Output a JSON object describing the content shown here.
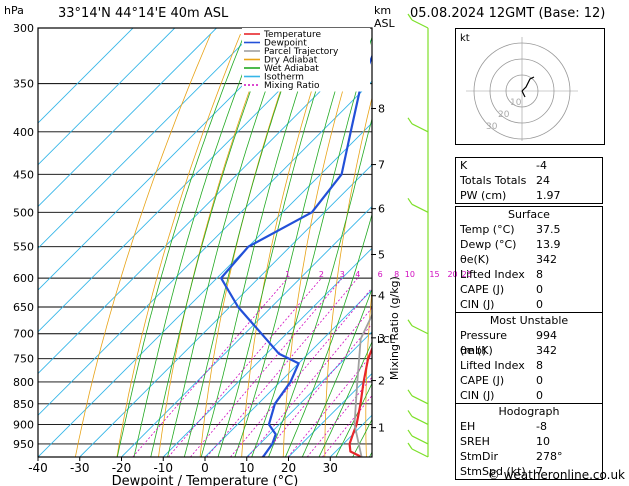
{
  "header": {
    "title": "33°14'N 44°14'E 40m ASL",
    "date": "05.08.2024 12GMT (Base: 12)",
    "hpa_label": "hPa",
    "km_label": "km",
    "asl_label": "ASL"
  },
  "footer": {
    "text": "© weatheronline.co.uk"
  },
  "chart_data": {
    "type": "skew-t",
    "xlabel": "Dewpoint / Temperature (°C)",
    "ylabel_right": "Mixing Ratio (g/kg)",
    "x_ticks": [
      -40,
      -30,
      -20,
      -10,
      0,
      10,
      20,
      30
    ],
    "pressure_ticks": [
      300,
      350,
      400,
      450,
      500,
      550,
      600,
      650,
      700,
      750,
      800,
      850,
      900,
      950
    ],
    "pressure_range": [
      300,
      985
    ],
    "temp_range_at_bottom": [
      -40,
      40
    ],
    "height_ticks_km": [
      {
        "km": "1",
        "p": 908
      },
      {
        "km": "2",
        "p": 797
      },
      {
        "km": "3",
        "p": 708
      },
      {
        "km": "4",
        "p": 630
      },
      {
        "km": "5",
        "p": 562
      },
      {
        "km": "6",
        "p": 495
      },
      {
        "km": "7",
        "p": 438
      },
      {
        "km": "8",
        "p": 375
      }
    ],
    "lcl_label": "LCL",
    "lcl_pressure": 710,
    "mixing_ratio_labels": [
      {
        "label": "1",
        "g": 1
      },
      {
        "label": "2",
        "g": 2
      },
      {
        "label": "3",
        "g": 3
      },
      {
        "label": "4",
        "g": 4
      },
      {
        "label": "6",
        "g": 6
      },
      {
        "label": "8",
        "g": 8
      },
      {
        "label": "10",
        "g": 10
      },
      {
        "label": "15",
        "g": 15
      },
      {
        "label": "20",
        "g": 20
      },
      {
        "label": "25",
        "g": 25
      }
    ],
    "legend": [
      "Temperature",
      "Dewpoint",
      "Parcel Trajectory",
      "Dry Adiabat",
      "Wet Adiabat",
      "Isotherm",
      "Mixing Ratio"
    ],
    "colors": {
      "temperature": "#e8262b",
      "dewpoint": "#2250d8",
      "parcel": "#a0a0a0",
      "dry_adiabat": "#e8a317",
      "wet_adiabat": "#22aa22",
      "isotherm": "#35b6e8",
      "mixing_ratio": "#d10dc0",
      "wind": "#7ee02a"
    },
    "series": [
      {
        "name": "Temperature",
        "points": [
          [
            985,
            37.5
          ],
          [
            970,
            33.5
          ],
          [
            950,
            31.5
          ],
          [
            925,
            30.0
          ],
          [
            900,
            28.5
          ],
          [
            850,
            24.5
          ],
          [
            800,
            20.0
          ],
          [
            750,
            15.5
          ],
          [
            700,
            12.0
          ],
          [
            650,
            8.0
          ],
          [
            600,
            4.0
          ],
          [
            550,
            -0.5
          ],
          [
            500,
            -6.0
          ],
          [
            450,
            -12.5
          ],
          [
            400,
            -20.0
          ],
          [
            350,
            -28.0
          ],
          [
            330,
            -31.5
          ]
        ]
      },
      {
        "name": "Dewpoint",
        "points": [
          [
            985,
            13.9
          ],
          [
            950,
            13.0
          ],
          [
            925,
            11.5
          ],
          [
            900,
            7.5
          ],
          [
            850,
            4.0
          ],
          [
            800,
            2.5
          ],
          [
            760,
            0.0
          ],
          [
            740,
            -7.0
          ],
          [
            700,
            -16.0
          ],
          [
            650,
            -28.0
          ],
          [
            600,
            -39.0
          ],
          [
            550,
            -40.0
          ],
          [
            500,
            -33.0
          ],
          [
            450,
            -35.0
          ],
          [
            400,
            -43.0
          ],
          [
            350,
            -52.0
          ],
          [
            300,
            -60.0
          ]
        ]
      },
      {
        "name": "Parcel Trajectory",
        "points": [
          [
            985,
            37.5
          ],
          [
            900,
            28.0
          ],
          [
            800,
            18.5
          ],
          [
            710,
            9.0
          ],
          [
            650,
            5.0
          ],
          [
            600,
            1.0
          ],
          [
            550,
            -3.5
          ],
          [
            500,
            -9.0
          ],
          [
            450,
            -15.0
          ],
          [
            400,
            -22.0
          ],
          [
            350,
            -31.0
          ],
          [
            300,
            -40.5
          ]
        ]
      }
    ],
    "wind_barbs_pressure": [
      300,
      400,
      500,
      700,
      850,
      900,
      950,
      985
    ]
  },
  "hodograph": {
    "label": "kt",
    "rings": [
      "10",
      "20",
      "30"
    ]
  },
  "indices": {
    "k_label": "K",
    "k": "-4",
    "tt_label": "Totals Totals",
    "tt": "24",
    "pw_label": "PW (cm)",
    "pw": "1.97",
    "surface_title": "Surface",
    "s_temp_label": "Temp (°C)",
    "s_temp": "37.5",
    "s_dewp_label": "Dewp (°C)",
    "s_dewp": "13.9",
    "s_theta_label": "θe(K)",
    "s_theta": "342",
    "s_li_label": "Lifted Index",
    "s_li": "8",
    "s_cape_label": "CAPE (J)",
    "s_cape": "0",
    "s_cin_label": "CIN (J)",
    "s_cin": "0",
    "mu_title": "Most Unstable",
    "mu_p_label": "Pressure (mb)",
    "mu_p": "994",
    "mu_theta_label": "θe (K)",
    "mu_theta": "342",
    "mu_li_label": "Lifted Index",
    "mu_li": "8",
    "mu_cape_label": "CAPE (J)",
    "mu_cape": "0",
    "mu_cin_label": "CIN (J)",
    "mu_cin": "0",
    "hodo_title": "Hodograph",
    "eh_label": "EH",
    "eh": "-8",
    "sreh_label": "SREH",
    "sreh": "10",
    "stmdir_label": "StmDir",
    "stmdir": "278°",
    "stmspd_label": "StmSpd (kt)",
    "stmspd": "7"
  }
}
